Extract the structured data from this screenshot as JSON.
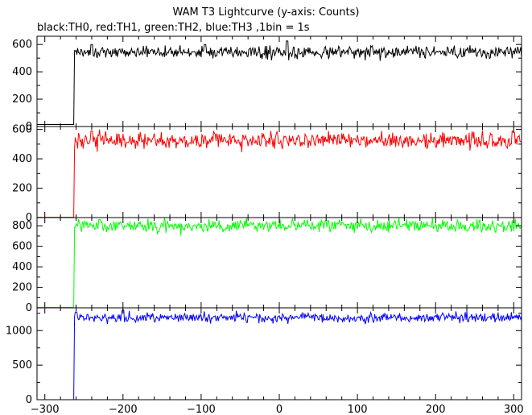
{
  "chart_data": {
    "type": "line",
    "title": "WAM T3 Lightcurve (y-axis: Counts)",
    "subtitle": "black:TH0, red:TH1, green:TH2, blue:TH3 ,1bin = 1s",
    "xlabel": "",
    "ylabel": "",
    "xlim": [
      -310,
      310
    ],
    "x_ticks": [
      -300,
      -200,
      -100,
      0,
      100,
      200,
      300
    ],
    "trigger_time": -262,
    "panels": [
      {
        "name": "TH0",
        "color": "#000000",
        "ylim": [
          0,
          660
        ],
        "y_ticks": [
          0,
          200,
          400,
          600
        ],
        "baseline": 15,
        "level": 545,
        "noise": 22,
        "note_peaks": [
          [
            10,
            625
          ],
          [
            -95,
            600
          ],
          [
            -240,
            600
          ]
        ]
      },
      {
        "name": "TH1",
        "color": "#ff0000",
        "ylim": [
          0,
          620
        ],
        "y_ticks": [
          0,
          200,
          400,
          600
        ],
        "baseline": 2,
        "level": 525,
        "noise": 28,
        "note_peaks": [
          [
            -240,
            590
          ],
          [
            300,
            580
          ]
        ]
      },
      {
        "name": "TH2",
        "color": "#00ff00",
        "ylim": [
          0,
          880
        ],
        "y_ticks": [
          0,
          200,
          400,
          600,
          800
        ],
        "baseline": 5,
        "level": 800,
        "noise": 30,
        "note_peaks": [
          [
            -230,
            860
          ]
        ]
      },
      {
        "name": "TH3",
        "color": "#0000ff",
        "ylim": [
          0,
          1330
        ],
        "y_ticks": [
          0,
          500,
          1000
        ],
        "baseline": 0,
        "level": 1190,
        "noise": 35,
        "note_peaks": [
          [
            -200,
            1300
          ],
          [
            -260,
            1270
          ]
        ]
      }
    ]
  }
}
